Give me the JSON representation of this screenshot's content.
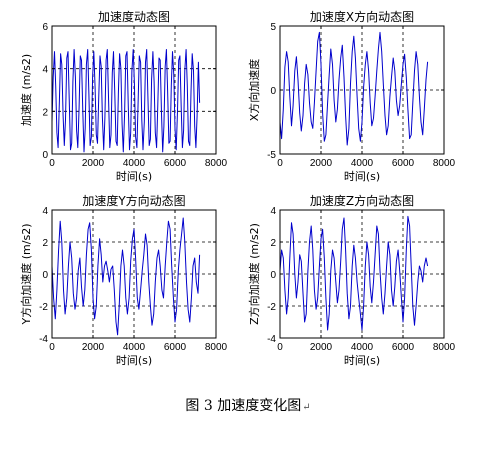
{
  "caption": "图 3  加速度变化图",
  "caption_mark": "↵",
  "chart_data": [
    {
      "type": "line",
      "title": "加速度动态图",
      "xlabel": "时间(s)",
      "ylabel": "加速度 (m/s2)",
      "xlim": [
        0,
        8000
      ],
      "ylim": [
        0,
        6
      ],
      "xticks": [
        0,
        2000,
        4000,
        6000,
        8000
      ],
      "yticks": [
        0,
        2,
        4,
        6
      ],
      "xtick_labels": [
        "0",
        "2000",
        "4000",
        "6000",
        "8000"
      ],
      "ytick_labels": [
        "0",
        "2",
        "4",
        "6"
      ],
      "grid": "dashed",
      "color": "#0000cc",
      "series": [
        {
          "x": [
            0,
            60,
            120,
            180,
            240,
            300,
            360,
            420,
            480,
            540,
            600,
            660,
            720,
            780,
            840,
            900,
            960,
            1020,
            1080,
            1140,
            1200,
            1260,
            1320,
            1380,
            1440,
            1500,
            1560,
            1620,
            1680,
            1740,
            1800,
            1860,
            1920,
            1980,
            2040,
            2100,
            2160,
            2220,
            2280,
            2340,
            2400,
            2460,
            2520,
            2580,
            2640,
            2700,
            2760,
            2820,
            2880,
            2940,
            3000,
            3060,
            3120,
            3180,
            3240,
            3300,
            3360,
            3420,
            3480,
            3540,
            3600,
            3660,
            3720,
            3780,
            3840,
            3900,
            3960,
            4020,
            4080,
            4140,
            4200,
            4260,
            4320,
            4380,
            4440,
            4500,
            4560,
            4620,
            4680,
            4740,
            4800,
            4860,
            4920,
            4980,
            5040,
            5100,
            5160,
            5220,
            5280,
            5340,
            5400,
            5460,
            5520,
            5580,
            5640,
            5700,
            5760,
            5820,
            5880,
            5940,
            6000,
            6060,
            6120,
            6180,
            6240,
            6300,
            6360,
            6420,
            6480,
            6540,
            6600,
            6660,
            6720,
            6780,
            6840,
            6900,
            6960,
            7020,
            7080,
            7140,
            7200
          ],
          "y": [
            1.5,
            3.6,
            4.8,
            3.2,
            1.0,
            0.3,
            2.5,
            4.7,
            4.2,
            1.8,
            0.4,
            1.6,
            4.5,
            4.8,
            2.6,
            0.2,
            0.5,
            3.4,
            4.9,
            3.6,
            1.1,
            0.3,
            2.2,
            4.6,
            4.4,
            2.0,
            0.1,
            1.2,
            4.2,
            4.9,
            2.8,
            0.4,
            0.8,
            3.6,
            4.8,
            3.1,
            0.9,
            0.5,
            2.6,
            4.6,
            4.1,
            1.7,
            0.2,
            1.7,
            4.4,
            4.9,
            2.5,
            0.3,
            0.9,
            3.8,
            4.8,
            3.0,
            0.6,
            0.4,
            2.9,
            4.7,
            4.0,
            1.4,
            0.1,
            1.9,
            4.6,
            4.8,
            2.2,
            0.2,
            1.0,
            3.9,
            4.9,
            3.3,
            0.8,
            0.3,
            2.4,
            4.6,
            4.3,
            1.6,
            0.2,
            1.5,
            4.3,
            4.9,
            2.7,
            0.4,
            0.7,
            3.5,
            4.8,
            3.4,
            1.0,
            0.3,
            2.3,
            4.5,
            4.4,
            1.9,
            0.1,
            1.3,
            4.1,
            4.9,
            3.0,
            0.5,
            0.6,
            3.2,
            4.8,
            3.7,
            1.2,
            0.2,
            2.0,
            4.4,
            4.6,
            2.2,
            0.3,
            1.1,
            3.9,
            4.9,
            3.2,
            0.6,
            0.4,
            2.9,
            4.7,
            3.9,
            1.3,
            0.3,
            1.8,
            4.3,
            2.4
          ]
        }
      ]
    },
    {
      "type": "line",
      "title": "加速度X方向动态图",
      "xlabel": "时间(s)",
      "ylabel": "X方向加速度",
      "xlim": [
        0,
        8000
      ],
      "ylim": [
        -5,
        5
      ],
      "xticks": [
        0,
        2000,
        4000,
        6000,
        8000
      ],
      "yticks": [
        -5,
        0,
        5
      ],
      "xtick_labels": [
        "0",
        "2000",
        "4000",
        "6000",
        "8000"
      ],
      "ytick_labels": [
        "-5",
        "0",
        "5"
      ],
      "grid": "dashed",
      "color": "#0000cc",
      "series": [
        {
          "x": [
            0,
            80,
            160,
            240,
            320,
            400,
            480,
            560,
            640,
            720,
            800,
            880,
            960,
            1040,
            1120,
            1200,
            1280,
            1360,
            1440,
            1520,
            1600,
            1680,
            1760,
            1840,
            1920,
            2000,
            2080,
            2160,
            2240,
            2320,
            2400,
            2480,
            2560,
            2640,
            2720,
            2800,
            2880,
            2960,
            3040,
            3120,
            3200,
            3280,
            3360,
            3440,
            3520,
            3600,
            3680,
            3760,
            3840,
            3920,
            4000,
            4080,
            4160,
            4240,
            4320,
            4400,
            4480,
            4560,
            4640,
            4720,
            4800,
            4880,
            4960,
            5040,
            5120,
            5200,
            5280,
            5360,
            5440,
            5520,
            5600,
            5680,
            5760,
            5840,
            5920,
            6000,
            6080,
            6160,
            6240,
            6320,
            6400,
            6480,
            6560,
            6640,
            6720,
            6800,
            6880,
            6960,
            7040,
            7120,
            7200
          ],
          "y": [
            -2.5,
            -3.8,
            -1.5,
            1.8,
            3.0,
            2.2,
            -0.5,
            -2.8,
            -1.2,
            1.5,
            2.6,
            0.8,
            -1.8,
            -3.2,
            -2.0,
            0.5,
            2.0,
            1.2,
            -1.0,
            -2.5,
            -3.0,
            -1.0,
            1.5,
            3.8,
            4.5,
            2.0,
            -1.8,
            -4.0,
            -3.5,
            -1.0,
            1.2,
            3.2,
            2.0,
            -0.8,
            -2.5,
            -1.5,
            0.8,
            2.5,
            3.5,
            1.0,
            -2.0,
            -4.3,
            -3.0,
            0.5,
            3.0,
            4.2,
            2.5,
            -0.5,
            -3.0,
            -4.0,
            -2.5,
            0.2,
            2.0,
            3.0,
            1.5,
            -1.0,
            -2.8,
            -2.2,
            -0.5,
            1.5,
            3.2,
            4.5,
            3.0,
            0.5,
            -2.0,
            -3.5,
            -2.8,
            -0.5,
            1.0,
            2.5,
            1.5,
            -0.8,
            -2.0,
            -1.2,
            0.5,
            2.0,
            2.8,
            1.0,
            -1.5,
            -3.8,
            -3.5,
            -1.0,
            1.5,
            3.0,
            2.0,
            -0.5,
            -2.5,
            -3.5,
            -1.5,
            0.8,
            2.2
          ]
        }
      ]
    },
    {
      "type": "line",
      "title": "加速度Y方向动态图",
      "xlabel": "时间(s)",
      "ylabel": "Y方向加速度 (m/s2)",
      "xlim": [
        0,
        8000
      ],
      "ylim": [
        -4,
        4
      ],
      "xticks": [
        0,
        2000,
        4000,
        6000,
        8000
      ],
      "yticks": [
        -4,
        -2,
        0,
        2,
        4
      ],
      "xtick_labels": [
        "0",
        "2000",
        "4000",
        "6000",
        "8000"
      ],
      "ytick_labels": [
        "-4",
        "-2",
        "0",
        "2",
        "4"
      ],
      "grid": "dashed",
      "color": "#0000cc",
      "series": [
        {
          "x": [
            0,
            80,
            160,
            240,
            320,
            400,
            480,
            560,
            640,
            720,
            800,
            880,
            960,
            1040,
            1120,
            1200,
            1280,
            1360,
            1440,
            1520,
            1600,
            1680,
            1760,
            1840,
            1920,
            2000,
            2080,
            2160,
            2240,
            2320,
            2400,
            2480,
            2560,
            2640,
            2720,
            2800,
            2880,
            2960,
            3040,
            3120,
            3200,
            3280,
            3360,
            3440,
            3520,
            3600,
            3680,
            3760,
            3840,
            3920,
            4000,
            4080,
            4160,
            4240,
            4320,
            4400,
            4480,
            4560,
            4640,
            4720,
            4800,
            4880,
            4960,
            5040,
            5120,
            5200,
            5280,
            5360,
            5440,
            5520,
            5600,
            5680,
            5760,
            5840,
            5920,
            6000,
            6080,
            6160,
            6240,
            6320,
            6400,
            6480,
            6560,
            6640,
            6720,
            6800,
            6880,
            6960,
            7040,
            7120,
            7200
          ],
          "y": [
            0.5,
            -1.5,
            -2.8,
            -1.0,
            1.5,
            3.3,
            2.0,
            -1.0,
            -2.5,
            -1.5,
            0.5,
            2.0,
            1.0,
            -1.2,
            -2.2,
            -1.5,
            0.2,
            1.0,
            -0.8,
            -2.0,
            -1.0,
            1.2,
            2.8,
            3.2,
            1.5,
            -1.5,
            -2.8,
            -2.0,
            0.5,
            2.2,
            1.2,
            -0.5,
            0.5,
            0.8,
            0.2,
            -0.5,
            0.3,
            0.5,
            -1.0,
            -3.0,
            -3.8,
            -2.0,
            0.5,
            1.5,
            0.5,
            -1.5,
            -2.5,
            -1.5,
            0.8,
            2.2,
            2.8,
            1.0,
            -1.5,
            -2.2,
            -1.0,
            0.2,
            1.2,
            2.5,
            1.8,
            -0.5,
            -2.0,
            -3.2,
            -2.5,
            -0.5,
            1.0,
            1.5,
            0.5,
            -1.0,
            -1.5,
            0.5,
            2.0,
            3.3,
            2.8,
            0.5,
            -1.5,
            -3.0,
            -2.2,
            0.2,
            1.5,
            2.5,
            3.5,
            2.0,
            -0.5,
            -2.2,
            -3.0,
            -1.5,
            0.5,
            1.0,
            -0.5,
            -1.2,
            1.2
          ]
        }
      ]
    },
    {
      "type": "line",
      "title": "加速度Z方向动态图",
      "xlabel": "时间(s)",
      "ylabel": "Z方向加速度 (m/s2)",
      "xlim": [
        0,
        8000
      ],
      "ylim": [
        -4,
        4
      ],
      "xticks": [
        0,
        2000,
        4000,
        6000,
        8000
      ],
      "yticks": [
        -4,
        -2,
        0,
        2,
        4
      ],
      "xtick_labels": [
        "0",
        "2000",
        "4000",
        "6000",
        "8000"
      ],
      "ytick_labels": [
        "-4",
        "-2",
        "0",
        "2",
        "4"
      ],
      "grid": "dashed",
      "color": "#0000cc",
      "series": [
        {
          "x": [
            0,
            80,
            160,
            240,
            320,
            400,
            480,
            560,
            640,
            720,
            800,
            880,
            960,
            1040,
            1120,
            1200,
            1280,
            1360,
            1440,
            1520,
            1600,
            1680,
            1760,
            1840,
            1920,
            2000,
            2080,
            2160,
            2240,
            2320,
            2400,
            2480,
            2560,
            2640,
            2720,
            2800,
            2880,
            2960,
            3040,
            3120,
            3200,
            3280,
            3360,
            3440,
            3520,
            3600,
            3680,
            3760,
            3840,
            3920,
            4000,
            4080,
            4160,
            4240,
            4320,
            4400,
            4480,
            4560,
            4640,
            4720,
            4800,
            4880,
            4960,
            5040,
            5120,
            5200,
            5280,
            5360,
            5440,
            5520,
            5600,
            5680,
            5760,
            5840,
            5920,
            6000,
            6080,
            6160,
            6240,
            6320,
            6400,
            6480,
            6560,
            6640,
            6720,
            6800,
            6880,
            6960,
            7040,
            7120,
            7200
          ],
          "y": [
            0.2,
            1.5,
            1.0,
            -1.0,
            -2.5,
            -1.5,
            1.0,
            3.2,
            2.5,
            0.0,
            -1.5,
            -0.5,
            1.2,
            0.8,
            -1.2,
            -3.0,
            -2.5,
            0.2,
            2.0,
            3.0,
            1.5,
            -1.0,
            -2.2,
            -1.5,
            0.5,
            2.2,
            2.8,
            1.0,
            -1.5,
            -3.5,
            -2.5,
            0.2,
            1.5,
            1.0,
            -0.5,
            -1.8,
            -1.0,
            0.8,
            2.8,
            3.5,
            1.5,
            -1.2,
            -2.8,
            -2.0,
            0.5,
            1.8,
            1.0,
            -0.5,
            -1.5,
            -2.5,
            -3.5,
            -2.0,
            0.5,
            2.0,
            1.2,
            -0.8,
            -1.8,
            -0.5,
            1.2,
            3.0,
            2.5,
            0.2,
            -1.5,
            -2.5,
            -1.2,
            0.5,
            2.0,
            1.2,
            -1.0,
            -2.0,
            -0.8,
            0.8,
            1.5,
            0.2,
            -1.5,
            -3.0,
            -1.5,
            1.5,
            3.6,
            3.0,
            0.5,
            -2.0,
            -3.2,
            -2.0,
            -0.5,
            0.5,
            0.2,
            -0.5,
            0.5,
            1.0,
            0.5
          ]
        }
      ]
    }
  ]
}
